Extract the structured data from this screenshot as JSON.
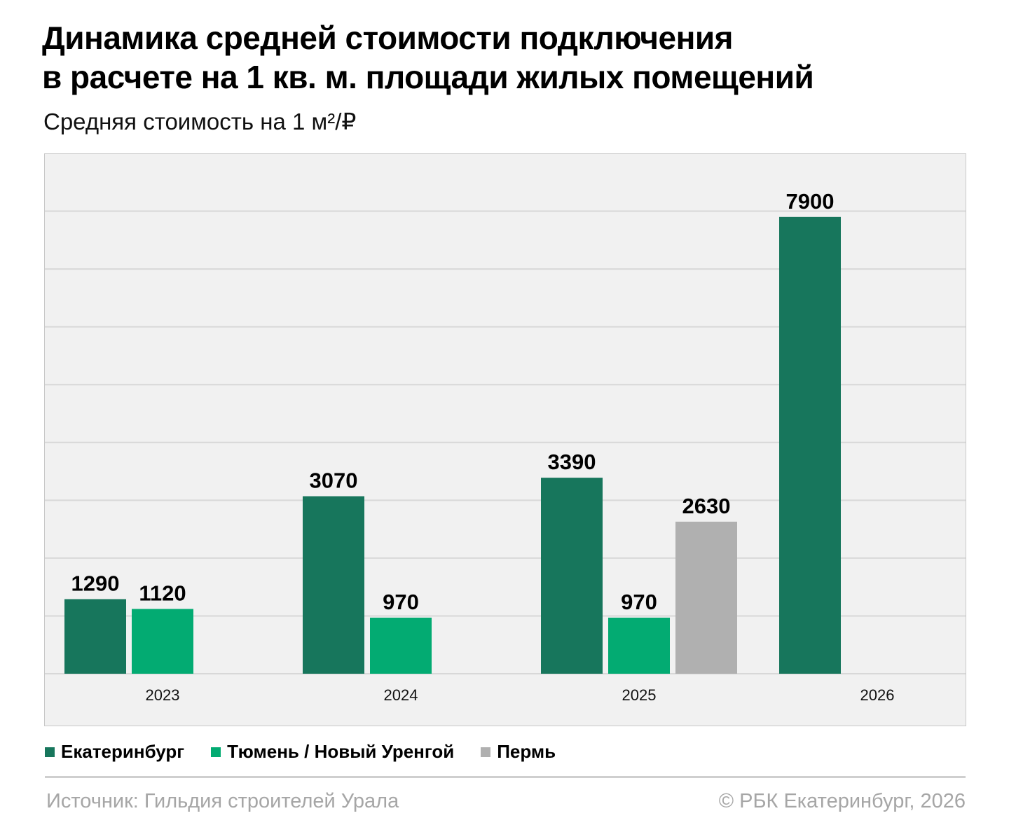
{
  "chart_data": {
    "type": "bar",
    "title_line1": "Динамика средней стоимости подключения",
    "title_line2": "в расчете на 1 кв. м. площади жилых помещений",
    "subtitle": "Средняя стоимость на 1 м²/₽",
    "categories": [
      "2023",
      "2024",
      "2025",
      "2026"
    ],
    "series": [
      {
        "name": "Екатеринбург",
        "color": "#17765c",
        "values": [
          1290,
          3070,
          3390,
          7900
        ]
      },
      {
        "name": "Тюмень / Новый Уренгой",
        "color": "#03ab72",
        "values": [
          1120,
          970,
          970,
          null
        ]
      },
      {
        "name": "Пермь",
        "color": "#b0b0b0",
        "values": [
          null,
          null,
          2630,
          null
        ]
      }
    ],
    "ylim": [
      0,
      9000
    ],
    "grid": true,
    "grid_step": 1000,
    "legend_placement": "bottom-left",
    "plot_background": "#f1f1f1"
  },
  "footer": {
    "source": "Источник: Гильдия строителей Урала",
    "copyright": "© РБК Екатеринбург, 2026"
  }
}
